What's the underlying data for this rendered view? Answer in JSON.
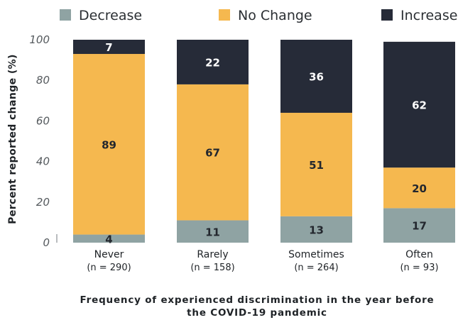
{
  "chart_data": {
    "type": "bar",
    "stacked": true,
    "xlabel_lines": [
      "Frequency of experienced discrimination in the year before",
      "the COVID-19 pandemic"
    ],
    "ylabel": "Percent reported change (%)",
    "ylim": [
      0,
      100
    ],
    "yticks": [
      "0",
      "20",
      "40",
      "60",
      "80",
      "100"
    ],
    "legend_position": "top",
    "categories": [
      "Never",
      "Rarely",
      "Sometimes",
      "Often"
    ],
    "category_notes": [
      "(n = 290)",
      "(n = 158)",
      "(n = 264)",
      "(n = 93)"
    ],
    "series": [
      {
        "name": "Decrease",
        "color": "#8fa3a3",
        "label_color": "#23272e",
        "values": [
          4,
          11,
          13,
          17
        ]
      },
      {
        "name": "No Change",
        "color": "#f5b84f",
        "label_color": "#23272e",
        "values": [
          89,
          67,
          51,
          20
        ]
      },
      {
        "name": "Increase",
        "color": "#262b38",
        "label_color": "#ffffff",
        "values": [
          7,
          22,
          36,
          62
        ]
      }
    ],
    "data_labels": [
      [
        "4",
        "11",
        "13",
        "17"
      ],
      [
        "89",
        "67",
        "51",
        "20"
      ],
      [
        "7",
        "22",
        "36",
        "62"
      ]
    ]
  }
}
